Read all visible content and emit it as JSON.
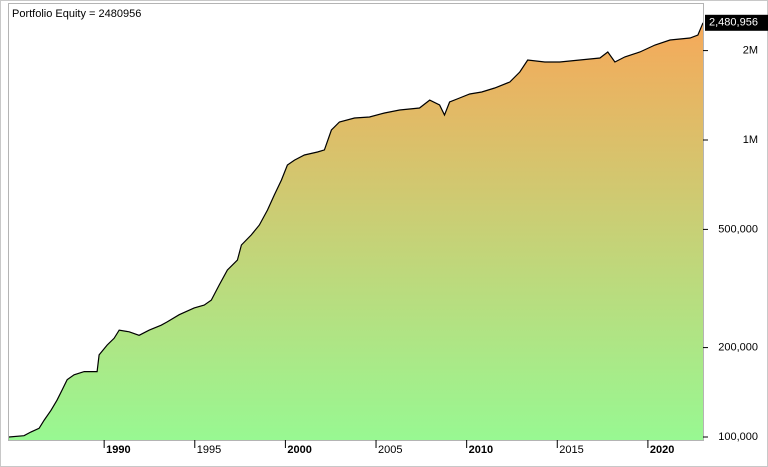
{
  "chart_data": {
    "type": "area",
    "title": "Portfolio Equity = 2480956",
    "log_scale": true,
    "gradient": [
      "#f6a95a",
      "#98f892"
    ],
    "series": [
      {
        "name": "Portfolio Equity",
        "color": "#000000",
        "x": [
          1984.75,
          1985.58,
          1985.97,
          1986.41,
          1986.69,
          1987.07,
          1987.4,
          1987.68,
          1987.96,
          1988.34,
          1988.9,
          1989.61,
          1989.72,
          1990.17,
          1990.55,
          1990.83,
          1991.38,
          1991.93,
          1992.49,
          1993.15,
          1993.48,
          1994.14,
          1994.97,
          1995.52,
          1995.91,
          1996.35,
          1996.8,
          1997.35,
          1997.57,
          1998.12,
          1998.56,
          1999.01,
          1999.39,
          1999.78,
          2000.11,
          2000.5,
          2001.05,
          2001.77,
          2002.15,
          2002.54,
          2002.98,
          2003.81,
          2004.64,
          2005.47,
          2006.3,
          2007.4,
          2007.96,
          2008.51,
          2008.78,
          2009.06,
          2009.61,
          2010.17,
          2010.83,
          2011.55,
          2012.38,
          2012.93,
          2013.37,
          2014.31,
          2015.14,
          2016.24,
          2017.35,
          2017.79,
          2018.18,
          2018.73,
          2019.56,
          2020.39,
          2021.22,
          2022.32,
          2022.76,
          2023.04
        ],
        "values": [
          100000,
          101000,
          104000,
          107000,
          114000,
          123000,
          133000,
          144000,
          156000,
          162000,
          166000,
          166000,
          189000,
          204000,
          215000,
          229000,
          226000,
          220000,
          229000,
          238000,
          244000,
          258000,
          272000,
          278000,
          289000,
          325000,
          365000,
          394000,
          443000,
          479000,
          517000,
          581000,
          653000,
          733000,
          824000,
          856000,
          890000,
          911000,
          926000,
          1081000,
          1150000,
          1186000,
          1195000,
          1233000,
          1262000,
          1282000,
          1363000,
          1312000,
          1214000,
          1343000,
          1385000,
          1428000,
          1451000,
          1497000,
          1568000,
          1694000,
          1860000,
          1831000,
          1831000,
          1860000,
          1889000,
          1979000,
          1831000,
          1904000,
          1979000,
          2089000,
          2172000,
          2205000,
          2257000,
          2480956
        ],
        "value_labels": [
          null,
          null,
          null,
          null,
          null,
          null,
          null,
          null,
          null,
          null,
          null,
          null,
          null,
          null,
          null,
          null,
          null,
          null,
          null,
          null,
          null,
          null,
          null,
          null,
          null,
          null,
          null,
          null,
          null,
          null,
          null,
          null,
          null,
          null,
          null,
          null,
          null,
          null,
          null,
          null,
          null,
          null,
          null,
          null,
          null,
          null,
          null,
          null,
          null,
          null,
          null,
          null,
          null,
          null,
          null,
          null,
          null,
          null,
          null,
          null,
          null,
          null,
          null,
          null,
          null,
          null,
          null,
          null,
          null,
          "2,480,956"
        ]
      }
    ],
    "xlim": [
      1984.75,
      2023.04
    ],
    "xticks": [
      1990,
      1995,
      2000,
      2005,
      2010,
      2015,
      2020
    ],
    "ylim": [
      97700,
      2848000
    ],
    "yticks": [
      {
        "value": 100000,
        "label": "100,000"
      },
      {
        "value": 200000,
        "label": "200,000"
      },
      {
        "value": 500000,
        "label": "500,000"
      },
      {
        "value": 1000000,
        "label": "1M"
      },
      {
        "value": 2000000,
        "label": "2M"
      }
    ]
  }
}
